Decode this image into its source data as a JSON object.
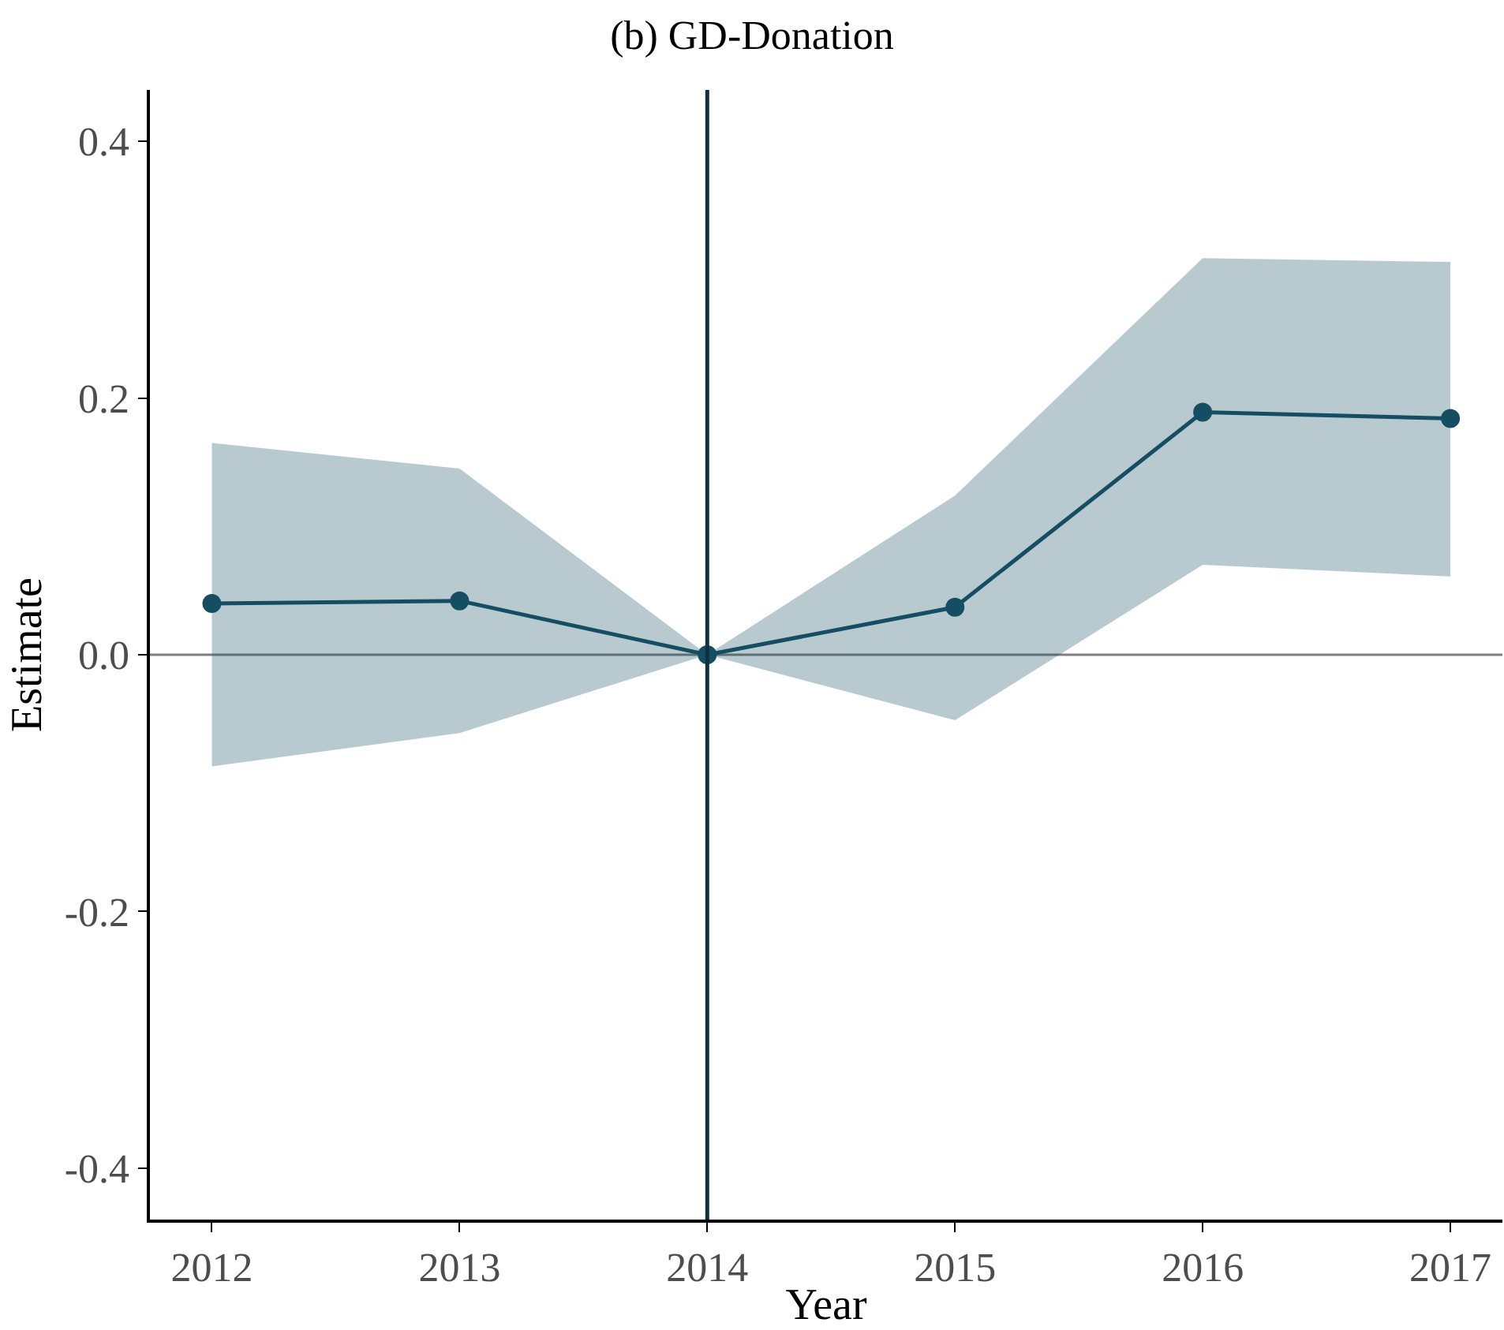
{
  "chart_data": {
    "type": "line",
    "title": "(b) GD-Donation",
    "xlabel": "Year",
    "ylabel": "Estimate",
    "x": [
      2012,
      2013,
      2014,
      2015,
      2016,
      2017
    ],
    "series": [
      {
        "color": "#154e63",
        "values": [
          0.04,
          0.042,
          0.0,
          0.037,
          0.189,
          0.184
        ],
        "lower": [
          -0.087,
          -0.061,
          0.0,
          -0.051,
          0.07,
          0.061
        ],
        "upper": [
          0.165,
          0.145,
          0.0,
          0.124,
          0.309,
          0.306
        ]
      }
    ],
    "xlim": [
      2011.75,
      2017.21
    ],
    "xticks": [
      2012,
      2013,
      2014,
      2015,
      2016,
      2017
    ],
    "ylim": [
      -0.44,
      0.44
    ],
    "yticks": [
      {
        "value": -0.4,
        "label": "-0.4"
      },
      {
        "value": -0.2,
        "label": "-0.2"
      },
      {
        "value": 0.0,
        "label": "0.0"
      },
      {
        "value": 0.2,
        "label": "0.2"
      },
      {
        "value": 0.4,
        "label": "0.4"
      }
    ],
    "ref_lines": [
      {
        "axis": "y",
        "value": 0,
        "color": "#7f7f7f"
      },
      {
        "axis": "x",
        "value": 2014,
        "color": "#10303f"
      }
    ],
    "marker": "circle",
    "line_style": "solid",
    "grid": false
  }
}
